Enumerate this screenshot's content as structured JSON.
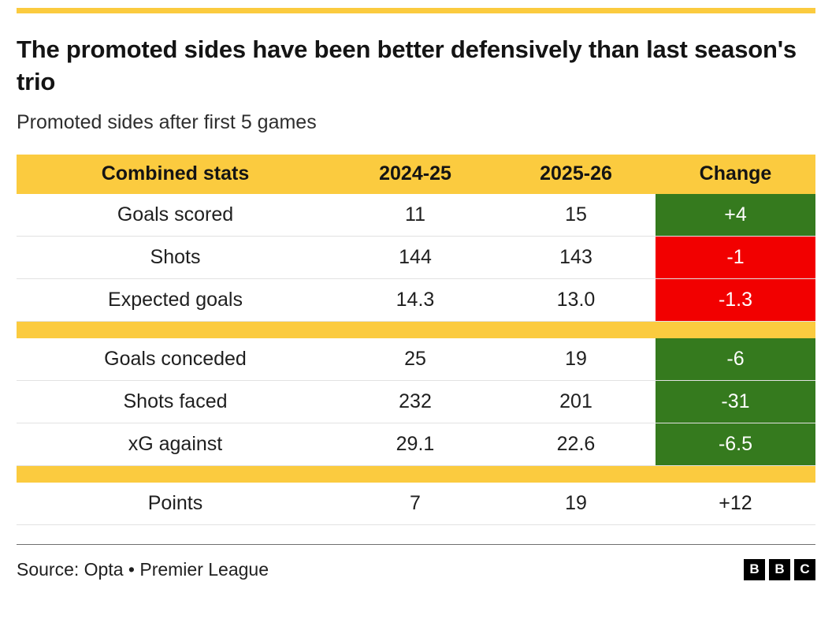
{
  "colors": {
    "accent_yellow": "#FBCB3F",
    "positive_green": "#357A1E",
    "negative_red": "#F20000"
  },
  "title": "The promoted sides have been better defensively than last season's trio",
  "subtitle": "Promoted sides after first 5 games",
  "chart_data": {
    "type": "table",
    "title": "Promoted sides after first 5 games",
    "columns": [
      "Combined stats",
      "2024-25",
      "2025-26",
      "Change"
    ],
    "sections": [
      {
        "rows": [
          {
            "label": "Goals scored",
            "values": [
              "11",
              "15"
            ],
            "change": "+4",
            "change_bg": "#357A1E",
            "change_fg": "#FFFFFF"
          },
          {
            "label": "Shots",
            "values": [
              "144",
              "143"
            ],
            "change": "-1",
            "change_bg": "#F20000",
            "change_fg": "#FFFFFF"
          },
          {
            "label": "Expected goals",
            "values": [
              "14.3",
              "13.0"
            ],
            "change": "-1.3",
            "change_bg": "#F20000",
            "change_fg": "#FFFFFF"
          }
        ]
      },
      {
        "rows": [
          {
            "label": "Goals conceded",
            "values": [
              "25",
              "19"
            ],
            "change": "-6",
            "change_bg": "#357A1E",
            "change_fg": "#FFFFFF"
          },
          {
            "label": "Shots faced",
            "values": [
              "232",
              "201"
            ],
            "change": "-31",
            "change_bg": "#357A1E",
            "change_fg": "#FFFFFF"
          },
          {
            "label": "xG against",
            "values": [
              "29.1",
              "22.6"
            ],
            "change": "-6.5",
            "change_bg": "#357A1E",
            "change_fg": "#FFFFFF"
          }
        ]
      },
      {
        "rows": [
          {
            "label": "Points",
            "values": [
              "7",
              "19"
            ],
            "change": "+12",
            "change_bg": "transparent",
            "change_fg": "#1A1A1A"
          }
        ]
      }
    ]
  },
  "footer": {
    "source": "Source: Opta • Premier League",
    "logo_letters": [
      "B",
      "B",
      "C"
    ]
  }
}
